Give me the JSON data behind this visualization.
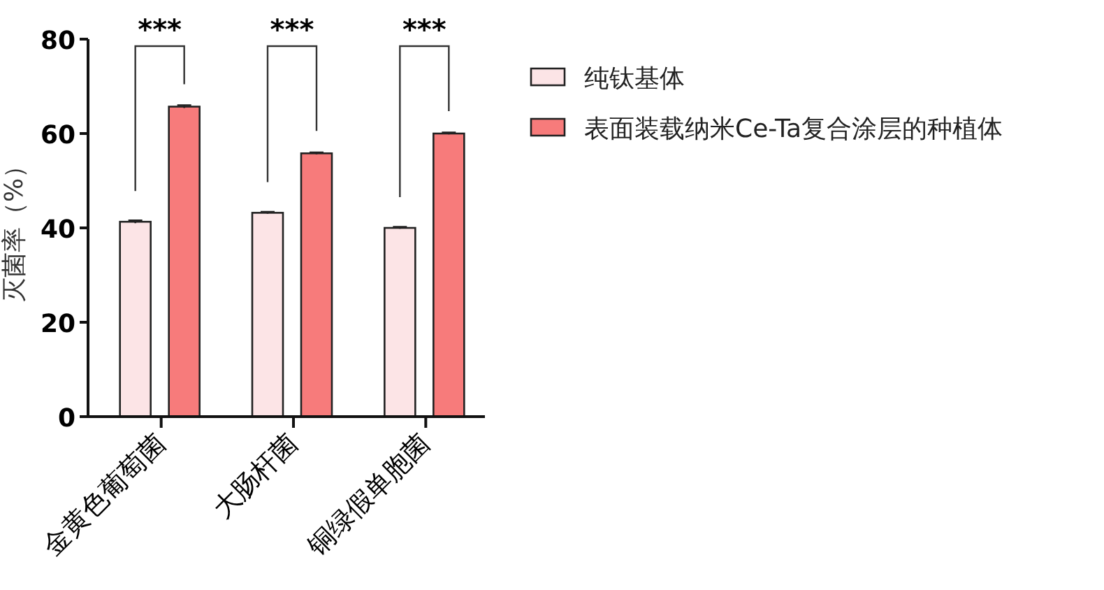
{
  "chart_data": {
    "type": "bar",
    "categories": [
      "金黄色葡萄菌",
      "大肠杆菌",
      "铜绿假单胞菌"
    ],
    "ylabel": "灭菌率（%）",
    "ylim": [
      0,
      80
    ],
    "yticks": [
      0,
      20,
      40,
      60,
      80
    ],
    "grid": false,
    "legend": "right",
    "series": [
      {
        "name": "纯钛基体",
        "color": "#fce4e6",
        "values": [
          41.3,
          43.2,
          40.0
        ],
        "errors": [
          0.3,
          0.2,
          0.2
        ]
      },
      {
        "name": "表面装载纳米Ce-Ta复合涂层的种植体",
        "color": "#f77b7b",
        "values": [
          65.7,
          55.8,
          60.0
        ],
        "errors": [
          0.3,
          0.2,
          0.2
        ]
      }
    ],
    "annotations": [
      "***",
      "***",
      "***"
    ]
  }
}
